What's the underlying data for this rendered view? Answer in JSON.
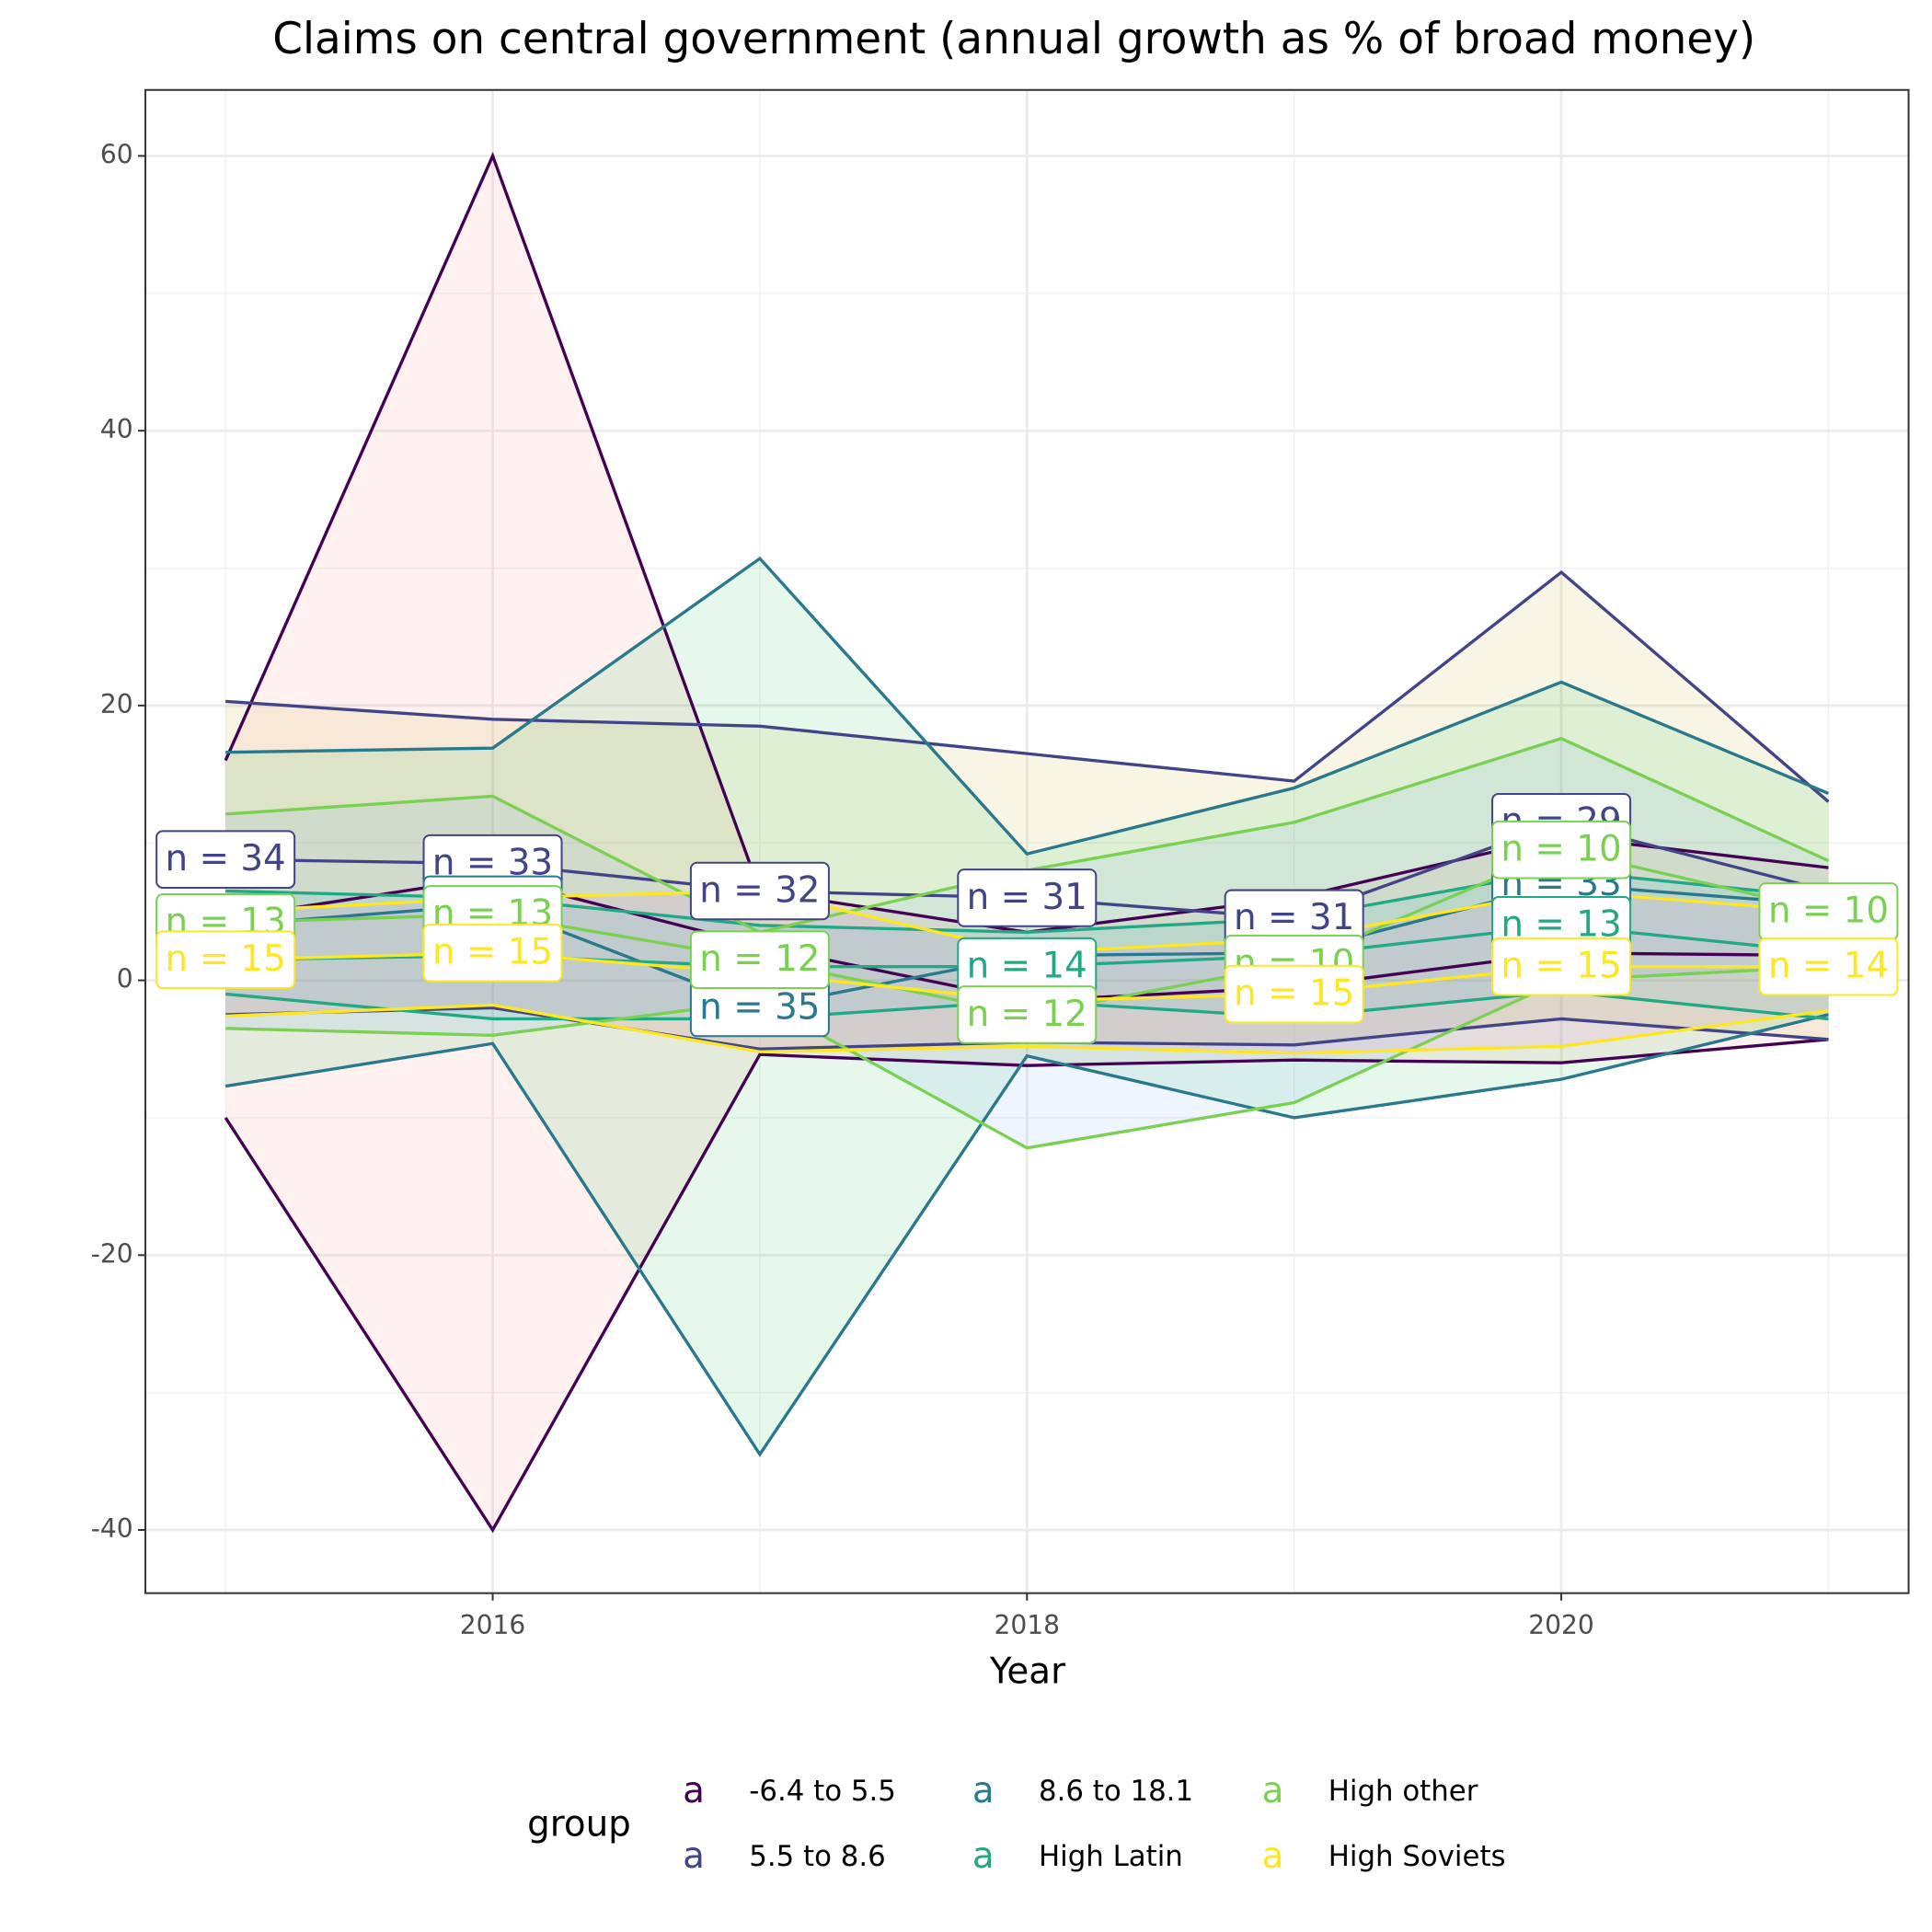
{
  "chart_data": {
    "type": "ribbon-line",
    "title": "Claims on central government (annual growth as % of broad money)",
    "x_label": "Year",
    "legend_title": "group",
    "x": [
      2015,
      2016,
      2017,
      2018,
      2019,
      2020,
      2021
    ],
    "xlim": [
      2014.7,
      2021.3
    ],
    "xticks": [
      2016,
      2018,
      2020
    ],
    "ylim": [
      -44.6,
      64.8
    ],
    "yticks": [
      -40,
      -20,
      0,
      20,
      40,
      60
    ],
    "grid": true,
    "series": [
      {
        "name": "-6.4 to 5.5",
        "color": "#440154",
        "fill": "#F8766D",
        "max": [
          16,
          60,
          6.5,
          3.5,
          6,
          10.5,
          8.2
        ],
        "min": [
          -10,
          -40,
          -5.4,
          -6.2,
          -5.8,
          -6,
          -4.3
        ],
        "median": [
          4.5,
          7.5,
          2.5,
          -1.5,
          -0.5,
          2,
          1.8
        ],
        "labels": [
          null,
          "n = 35",
          null,
          null,
          null,
          null,
          null
        ]
      },
      {
        "name": "5.5 to 8.6",
        "color": "#414487",
        "fill": "#B79F00",
        "max": [
          20.3,
          19,
          18.5,
          16.5,
          14.5,
          29.7,
          13
        ],
        "min": [
          -2.5,
          -2,
          -5,
          -4.5,
          -4.7,
          -2.8,
          -4.3
        ],
        "median": [
          8.8,
          8.5,
          6.5,
          6,
          4.5,
          11.5,
          6.5
        ],
        "labels": [
          "n = 34",
          "n = 33",
          "n = 32",
          "n = 31",
          "n = 31",
          "n = 29",
          null
        ]
      },
      {
        "name": "8.6 to 18.1",
        "color": "#2A788E",
        "fill": "#00BA38",
        "max": [
          16.6,
          16.9,
          30.7,
          9.2,
          14,
          21.7,
          13.6
        ],
        "min": [
          -7.7,
          -4.6,
          -34.5,
          -5.5,
          -10,
          -7.2,
          -2.5
        ],
        "median": [
          4,
          5.5,
          -2,
          1.8,
          2,
          7,
          5.5
        ],
        "labels": [
          null,
          "n = 36",
          "n = 35",
          null,
          null,
          "n = 33",
          null
        ]
      },
      {
        "name": "High Latin",
        "color": "#22A884",
        "fill": "#00BFC4",
        "max": [
          6.5,
          6,
          4,
          3.5,
          4.5,
          8,
          6
        ],
        "min": [
          -1,
          -2.8,
          -2.8,
          -1.5,
          -2.7,
          -0.8,
          -2.8
        ],
        "median": [
          1.5,
          1.8,
          1,
          1,
          1.8,
          4,
          2
        ],
        "labels": [
          null,
          null,
          null,
          "n = 14",
          null,
          "n = 13",
          null
        ]
      },
      {
        "name": "High other",
        "color": "#7AD151",
        "fill": "#619CFF",
        "max": [
          12.1,
          13.4,
          3.5,
          8,
          11.5,
          17.6,
          8.7
        ],
        "min": [
          -3.5,
          -4,
          -1.5,
          -12.2,
          -8.9,
          0,
          1
        ],
        "median": [
          4.2,
          4.8,
          1.5,
          -2.5,
          1.2,
          9.5,
          5
        ],
        "labels": [
          "n = 13",
          "n = 13",
          "n = 12",
          "n = 12",
          "n = 10",
          "n = 10",
          "n = 10"
        ]
      },
      {
        "name": "High Soviets",
        "color": "#FDE725",
        "fill": "#F564E3",
        "max": [
          5,
          6,
          6.5,
          2,
          3,
          6.5,
          5
        ],
        "min": [
          -2.6,
          -1.8,
          -5.2,
          -4.8,
          -5.3,
          -4.8,
          -2.2
        ],
        "median": [
          1.5,
          2,
          0.5,
          -1.5,
          -1,
          1,
          1
        ],
        "labels": [
          "n = 15",
          "n = 15",
          null,
          null,
          "n = 15",
          "n = 15",
          "n = 14"
        ]
      }
    ]
  }
}
